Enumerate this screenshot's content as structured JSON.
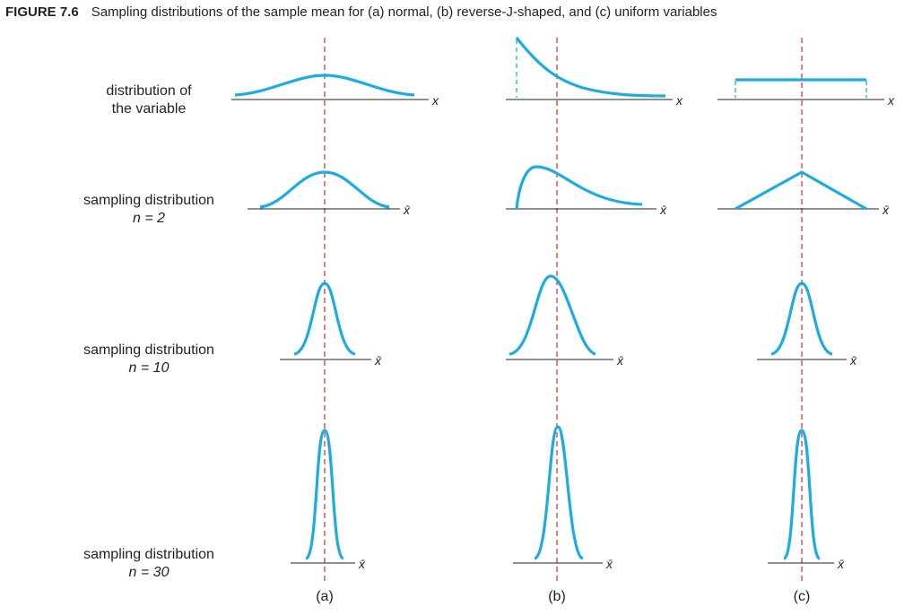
{
  "caption": {
    "number": "FIGURE 7.6",
    "text": "Sampling distributions of the sample mean for (a) normal, (b) reverse-J-shaped, and (c) uniform variables"
  },
  "rows": [
    {
      "line1": "distribution of",
      "line2": "the variable",
      "n_label": "",
      "axis_symbol": "x"
    },
    {
      "line1": "sampling distribution",
      "line2": "",
      "n_label": "n = 2",
      "axis_symbol": "x̄"
    },
    {
      "line1": "sampling distribution",
      "line2": "",
      "n_label": "n = 10",
      "axis_symbol": "x̄"
    },
    {
      "line1": "sampling distribution",
      "line2": "",
      "n_label": "n = 30",
      "axis_symbol": "x̄"
    }
  ],
  "panels": [
    "(a)",
    "(b)",
    "(c)"
  ],
  "colors": {
    "curve": "#1aace3",
    "mean_line": "#d9252b",
    "axis": "#231f20",
    "text": "#231f20"
  }
}
